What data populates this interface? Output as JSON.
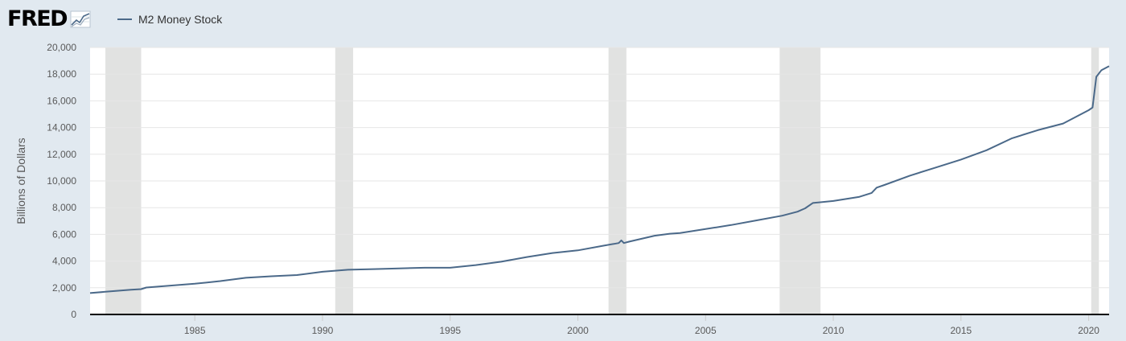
{
  "header": {
    "logo_text": "FRED",
    "logo_icon": "chart-line-icon"
  },
  "colors": {
    "background": "#e1e9f0",
    "plot_background": "#ffffff",
    "series": "#4b6989",
    "recession": "#e1e2e1",
    "grid": "#e6e6e6",
    "axis": "#000000"
  },
  "chart_data": {
    "type": "line",
    "title": "",
    "ylabel": "Billions of Dollars",
    "xlabel": "",
    "xlim": [
      1980.9,
      2020.8
    ],
    "ylim": [
      0,
      20000
    ],
    "ytick_values": [
      0,
      2000,
      4000,
      6000,
      8000,
      10000,
      12000,
      14000,
      16000,
      18000,
      20000
    ],
    "ytick_labels": [
      "0",
      "2,000",
      "4,000",
      "6,000",
      "8,000",
      "10,000",
      "12,000",
      "14,000",
      "16,000",
      "18,000",
      "20,000"
    ],
    "xtick_values": [
      1985,
      1990,
      1995,
      2000,
      2005,
      2010,
      2015,
      2020
    ],
    "xtick_labels": [
      "1985",
      "1990",
      "1995",
      "2000",
      "2005",
      "2010",
      "2015",
      "2020"
    ],
    "grid": true,
    "legend_position": "top-left",
    "recessions": [
      [
        1981.5,
        1982.9
      ],
      [
        1990.5,
        1991.2
      ],
      [
        2001.2,
        2001.9
      ],
      [
        2007.9,
        2009.5
      ],
      [
        2020.1,
        2020.4
      ]
    ],
    "series": [
      {
        "name": "M2 Money Stock",
        "x": [
          1980.9,
          1981.5,
          1982.0,
          1982.5,
          1982.9,
          1983.1,
          1983.5,
          1984.0,
          1985.0,
          1986.0,
          1987.0,
          1988.0,
          1989.0,
          1990.0,
          1991.0,
          1992.0,
          1993.0,
          1994.0,
          1995.0,
          1996.0,
          1997.0,
          1998.0,
          1999.0,
          2000.0,
          2001.0,
          2001.6,
          2001.7,
          2001.8,
          2002.0,
          2003.0,
          2003.6,
          2004.0,
          2005.0,
          2006.0,
          2007.0,
          2008.0,
          2008.6,
          2008.9,
          2009.2,
          2010.0,
          2011.0,
          2011.5,
          2011.7,
          2012.0,
          2013.0,
          2014.0,
          2015.0,
          2016.0,
          2017.0,
          2018.0,
          2019.0,
          2020.0,
          2020.15,
          2020.3,
          2020.5,
          2020.8
        ],
        "values": [
          1600,
          1700,
          1780,
          1850,
          1900,
          2020,
          2080,
          2150,
          2300,
          2500,
          2750,
          2860,
          2950,
          3200,
          3350,
          3400,
          3450,
          3500,
          3500,
          3700,
          3950,
          4300,
          4600,
          4800,
          5150,
          5350,
          5550,
          5350,
          5450,
          5900,
          6050,
          6100,
          6400,
          6700,
          7050,
          7400,
          7700,
          7950,
          8350,
          8500,
          8800,
          9100,
          9500,
          9700,
          10400,
          11000,
          11600,
          12300,
          13200,
          13800,
          14300,
          15300,
          15500,
          17800,
          18300,
          18600
        ]
      }
    ]
  }
}
